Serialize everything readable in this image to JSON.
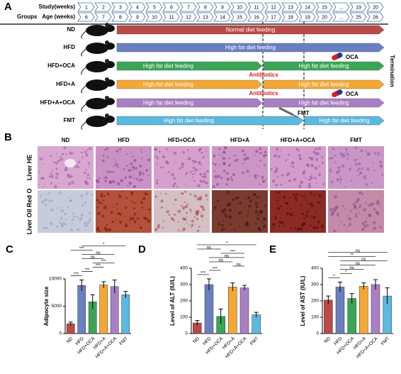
{
  "panel_a": {
    "letter": "A",
    "study_label": "Study(weeks)",
    "groups_label": "Groups",
    "age_label": "Age (weeks)",
    "study_weeks": [
      1,
      2,
      3,
      4,
      5,
      6,
      7,
      8,
      9,
      10,
      11,
      12,
      13,
      14,
      15,
      "...",
      19,
      20
    ],
    "age_weeks": [
      6,
      7,
      8,
      9,
      10,
      11,
      12,
      13,
      14,
      15,
      16,
      17,
      18,
      19,
      20,
      "...",
      25,
      26
    ],
    "groups": [
      {
        "name": "ND",
        "color": "#b94a48",
        "segments": [
          "Normal diet feeding"
        ],
        "notes": []
      },
      {
        "name": "HFD",
        "color": "#6a7fbf",
        "segments": [
          "High fat diet feeding"
        ],
        "notes": []
      },
      {
        "name": "HFD+OCA",
        "color": "#3aa655",
        "segments": [
          "High fat diet feeding",
          "High fat diet feeding"
        ],
        "notes": [
          "OCA"
        ]
      },
      {
        "name": "HFD+A",
        "color": "#f4a833",
        "segments": [
          "High fat diet feeding",
          "High fat diet feeding"
        ],
        "notes": [
          "Antibiotics"
        ]
      },
      {
        "name": "HFD+A+OCA",
        "color": "#a97fc4",
        "segments": [
          "High fat diet feeding",
          "High fat diet feeding"
        ],
        "notes": [
          "Antibiotics",
          "OCA"
        ]
      },
      {
        "name": "FMT",
        "color": "#5bb8de",
        "segments": [
          "High fat diet feeding",
          "High fat diet feeding"
        ],
        "notes": [
          "FMT"
        ]
      }
    ],
    "termination": "Termination"
  },
  "panel_b": {
    "letter": "B",
    "columns": [
      "ND",
      "HFD",
      "HFD+OCA",
      "HFD+A",
      "HFD+A+OCA",
      "FMT"
    ],
    "rows": [
      "Liver HE",
      "Liver Oil Red O"
    ]
  },
  "chart_data": [
    {
      "type": "bar",
      "letter": "C",
      "ylabel": "Adipocyte size",
      "categories": [
        "ND",
        "HFD",
        "HFD+OCA",
        "HFD+A",
        "HFD+A+OCA",
        "FMT"
      ],
      "values": [
        1800,
        8800,
        5800,
        8900,
        8600,
        7100
      ],
      "errors": [
        300,
        1000,
        1300,
        600,
        1200,
        600
      ],
      "colors": [
        "#b94a48",
        "#6a7fbf",
        "#3aa655",
        "#f4a833",
        "#a97fc4",
        "#5bb8de"
      ],
      "ylim": [
        0,
        10000
      ],
      "yticks": [
        0,
        5000,
        10000
      ],
      "significance": [
        {
          "pair": [
            0,
            1
          ],
          "label": "***"
        },
        {
          "pair": [
            1,
            2
          ],
          "label": "***"
        },
        {
          "pair": [
            2,
            3
          ],
          "label": "***"
        },
        {
          "pair": [
            2,
            4
          ],
          "label": "***"
        },
        {
          "pair": [
            1,
            3
          ],
          "label": "ns"
        },
        {
          "pair": [
            1,
            4
          ],
          "label": "ns"
        },
        {
          "pair": [
            0,
            2
          ],
          "label": "***"
        },
        {
          "pair": [
            1,
            5
          ],
          "label": "*"
        }
      ]
    },
    {
      "type": "bar",
      "letter": "D",
      "ylabel": "Level of ALT (IU/L)",
      "categories": [
        "ND",
        "HFD",
        "HFD+OCA",
        "HFD+A",
        "HFD+A+OCA",
        "FMT"
      ],
      "values": [
        65,
        300,
        105,
        285,
        280,
        115
      ],
      "errors": [
        15,
        35,
        45,
        25,
        15,
        15
      ],
      "colors": [
        "#b94a48",
        "#6a7fbf",
        "#3aa655",
        "#f4a833",
        "#a97fc4",
        "#5bb8de"
      ],
      "ylim": [
        0,
        400
      ],
      "yticks": [
        0,
        100,
        200,
        300,
        400
      ],
      "significance": [
        {
          "pair": [
            0,
            1
          ],
          "label": "***"
        },
        {
          "pair": [
            1,
            2
          ],
          "label": "***"
        },
        {
          "pair": [
            3,
            4
          ],
          "label": "ns"
        },
        {
          "pair": [
            1,
            3
          ],
          "label": "ns"
        },
        {
          "pair": [
            1,
            4
          ],
          "label": "ns"
        },
        {
          "pair": [
            2,
            4
          ],
          "label": "***"
        },
        {
          "pair": [
            0,
            2
          ],
          "label": "ns"
        },
        {
          "pair": [
            0,
            5
          ],
          "label": "*"
        }
      ]
    },
    {
      "type": "bar",
      "letter": "E",
      "ylabel": "Level of AST (IU/L)",
      "categories": [
        "ND",
        "HFD",
        "HFD+OCA",
        "HFD+A",
        "HFD+A+OCA",
        "FMT"
      ],
      "values": [
        205,
        285,
        215,
        290,
        300,
        230
      ],
      "errors": [
        25,
        30,
        30,
        20,
        30,
        50
      ],
      "colors": [
        "#b94a48",
        "#6a7fbf",
        "#3aa655",
        "#f4a833",
        "#a97fc4",
        "#5bb8de"
      ],
      "ylim": [
        0,
        400
      ],
      "yticks": [
        0,
        100,
        200,
        300,
        400
      ],
      "significance": [
        {
          "pair": [
            0,
            1
          ],
          "label": "*"
        },
        {
          "pair": [
            1,
            2
          ],
          "label": "*"
        },
        {
          "pair": [
            1,
            3
          ],
          "label": "ns"
        },
        {
          "pair": [
            1,
            4
          ],
          "label": "ns"
        },
        {
          "pair": [
            1,
            5
          ],
          "label": "ns"
        },
        {
          "pair": [
            0,
            4
          ],
          "label": "**"
        },
        {
          "pair": [
            0,
            5
          ],
          "label": "ns"
        }
      ]
    }
  ]
}
